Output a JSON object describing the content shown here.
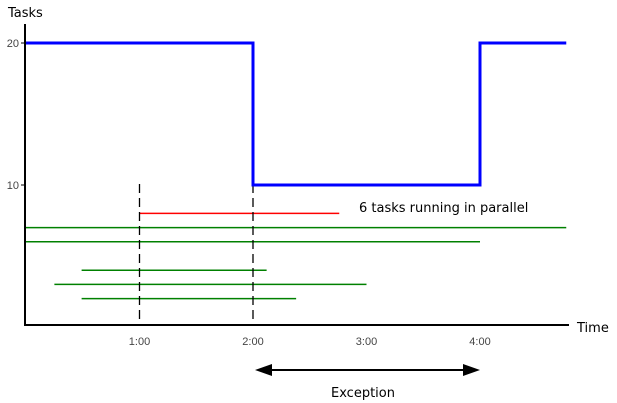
{
  "chart_data": {
    "type": "line",
    "ylabel": "Tasks",
    "xlabel": "Time",
    "xlim": [
      0,
      4.76
    ],
    "ylim": [
      0,
      21
    ],
    "x_ticks": [
      {
        "value": 1,
        "label": "1:00"
      },
      {
        "value": 2,
        "label": "2:00"
      },
      {
        "value": 3,
        "label": "3:00"
      },
      {
        "value": 4,
        "label": "4:00"
      }
    ],
    "y_ticks": [
      {
        "value": 10,
        "label": "10"
      },
      {
        "value": 20,
        "label": "20"
      }
    ],
    "grid": false,
    "capacity_series": {
      "color": "#0000ff",
      "step_points": [
        [
          0,
          20
        ],
        [
          2,
          20
        ],
        [
          2,
          10
        ],
        [
          4,
          10
        ],
        [
          4,
          20
        ],
        [
          4.76,
          20
        ]
      ]
    },
    "task_bars": [
      {
        "y": 8,
        "start": 1.0,
        "end": 2.76,
        "color": "#ff0000"
      },
      {
        "y": 7,
        "start": 0.0,
        "end": 4.76,
        "color": "#008000"
      },
      {
        "y": 6,
        "start": 0.0,
        "end": 4.0,
        "color": "#008000"
      },
      {
        "y": 4,
        "start": 0.49,
        "end": 2.12,
        "color": "#008000"
      },
      {
        "y": 3,
        "start": 0.25,
        "end": 3.0,
        "color": "#008000"
      },
      {
        "y": 2,
        "start": 0.49,
        "end": 2.38,
        "color": "#008000"
      }
    ],
    "dashed_markers": [
      1,
      2
    ],
    "annotations": {
      "parallel": "6 tasks running in parallel",
      "exception": "Exception",
      "exception_range": [
        2,
        4
      ]
    }
  }
}
